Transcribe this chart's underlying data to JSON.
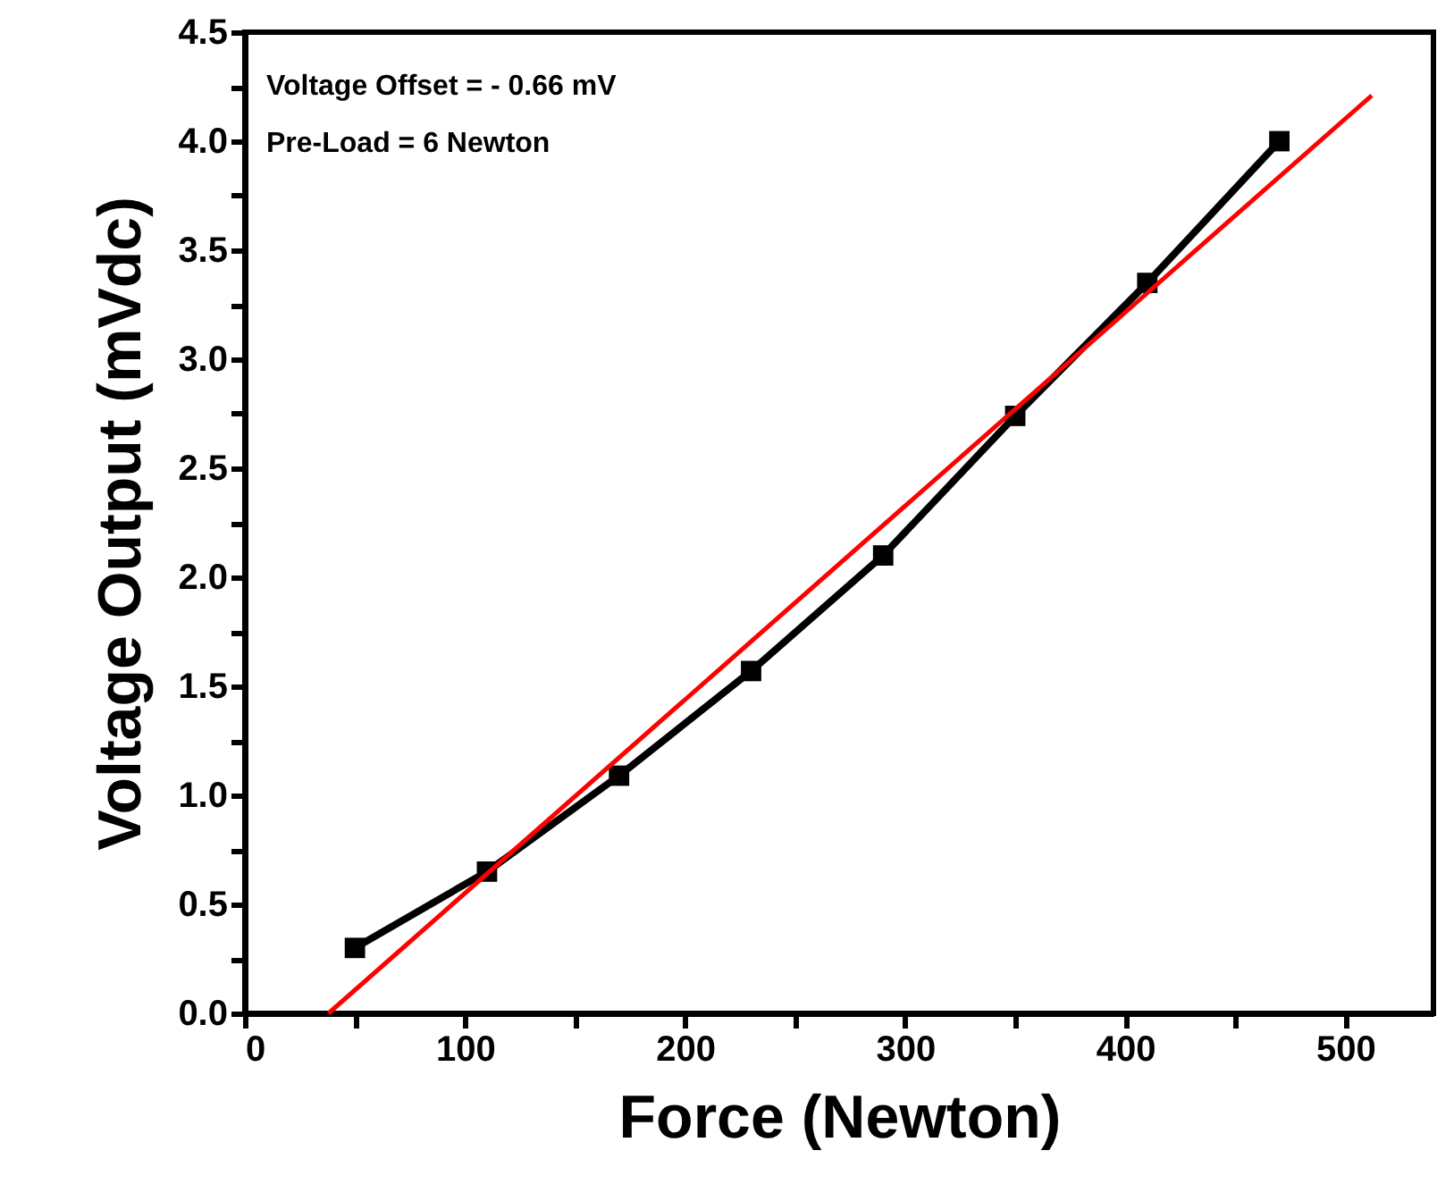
{
  "chart_data": {
    "type": "line",
    "xlabel": "Force (Newton)",
    "ylabel": "Voltage Output (mVdc)",
    "x": [
      50,
      110,
      170,
      230,
      290,
      350,
      410,
      470
    ],
    "series": [
      {
        "color": "#000000",
        "values": [
          0.3,
          0.65,
          1.09,
          1.57,
          2.1,
          2.74,
          3.35,
          4.0
        ]
      },
      {
        "type": "line",
        "x": [
          38,
          512
        ],
        "values": [
          0,
          4.21
        ],
        "color": "#ff0000",
        "marker": "none"
      }
    ],
    "annotations": [
      "Voltage Offset = - 0.66 mV",
      "Pre-Load = 6 Newton"
    ],
    "xlim": [
      0,
      540
    ],
    "ylim": [
      0,
      4.5
    ],
    "xticks": [
      0,
      {
        "value": 50,
        "label": null
      },
      100,
      {
        "value": 150,
        "label": null
      },
      200,
      {
        "value": 250,
        "label": null
      },
      300,
      {
        "value": 350,
        "label": null
      },
      400,
      {
        "value": 450,
        "label": null
      },
      500
    ],
    "yticks": [
      {
        "value": 0,
        "label": "0.0"
      },
      {
        "value": 0.25,
        "label": null
      },
      {
        "value": 0.5,
        "label": "0.5"
      },
      {
        "value": 0.75,
        "label": null
      },
      {
        "value": 1,
        "label": "1.0"
      },
      {
        "value": 1.25,
        "label": null
      },
      {
        "value": 1.5,
        "label": "1.5"
      },
      {
        "value": 1.75,
        "label": null
      },
      {
        "value": 2,
        "label": "2.0"
      },
      {
        "value": 2.25,
        "label": null
      },
      {
        "value": 2.5,
        "label": "2.5"
      },
      {
        "value": 2.75,
        "label": null
      },
      {
        "value": 3,
        "label": "3.0"
      },
      {
        "value": 3.25,
        "label": null
      },
      {
        "value": 3.5,
        "label": "3.5"
      },
      {
        "value": 3.75,
        "label": null
      },
      {
        "value": 4,
        "label": "4.0"
      },
      {
        "value": 4.25,
        "label": null
      },
      {
        "value": 4.5,
        "label": "4.5"
      }
    ],
    "marker": "square",
    "grid": false,
    "line_style": "solid"
  }
}
